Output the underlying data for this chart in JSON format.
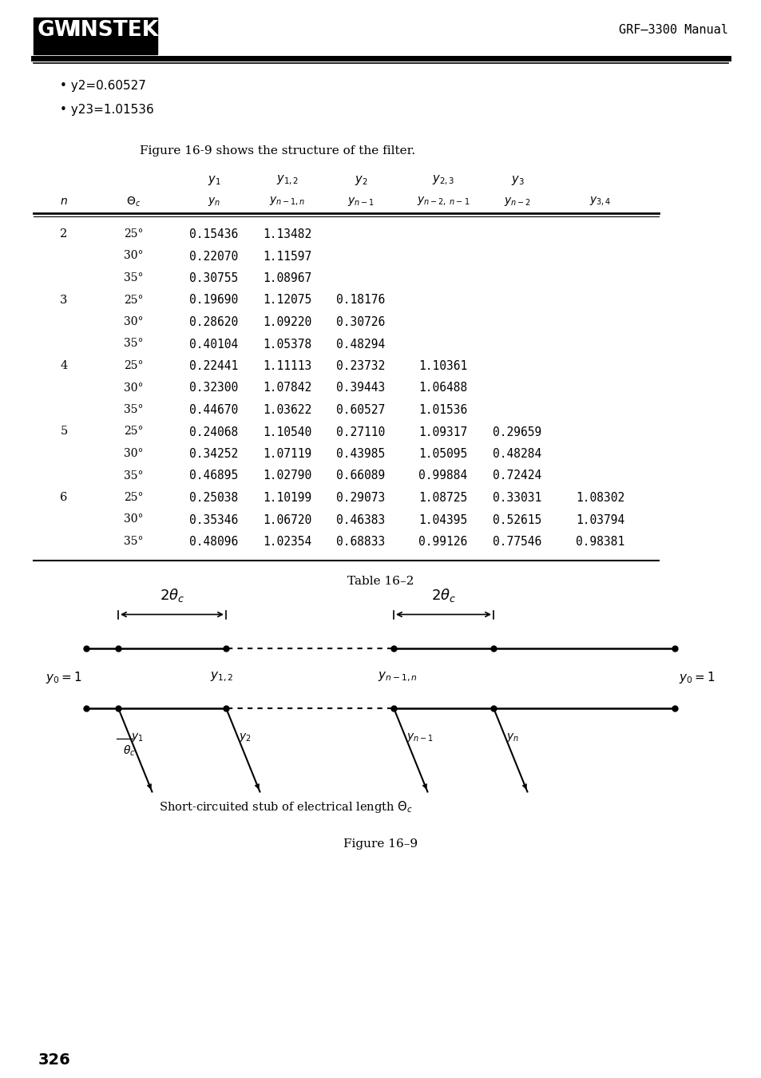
{
  "bg_color": "#ffffff",
  "header_right": "GRF–3300 Manual",
  "bullets": [
    "y2=0.60527",
    "y23=1.01536"
  ],
  "figure_caption_top": "Figure 16-9 shows the structure of the filter.",
  "table_caption": "Table 16–2",
  "figure_caption_bottom": "Figure 16–9",
  "page_number": "326",
  "table_data": [
    [
      "2",
      "25",
      "0.15436",
      "1.13482",
      "",
      "",
      "",
      ""
    ],
    [
      "",
      "30",
      "0.22070",
      "1.11597",
      "",
      "",
      "",
      ""
    ],
    [
      "",
      "35",
      "0.30755",
      "1.08967",
      "",
      "",
      "",
      ""
    ],
    [
      "3",
      "25",
      "0.19690",
      "1.12075",
      "0.18176",
      "",
      "",
      ""
    ],
    [
      "",
      "30",
      "0.28620",
      "1.09220",
      "0.30726",
      "",
      "",
      ""
    ],
    [
      "",
      "35",
      "0.40104",
      "1.05378",
      "0.48294",
      "",
      "",
      ""
    ],
    [
      "4",
      "25",
      "0.22441",
      "1.11113",
      "0.23732",
      "1.10361",
      "",
      ""
    ],
    [
      "",
      "30",
      "0.32300",
      "1.07842",
      "0.39443",
      "1.06488",
      "",
      ""
    ],
    [
      "",
      "35",
      "0.44670",
      "1.03622",
      "0.60527",
      "1.01536",
      "",
      ""
    ],
    [
      "5",
      "25",
      "0.24068",
      "1.10540",
      "0.27110",
      "1.09317",
      "0.29659",
      ""
    ],
    [
      "",
      "30",
      "0.34252",
      "1.07119",
      "0.43985",
      "1.05095",
      "0.48284",
      ""
    ],
    [
      "",
      "35",
      "0.46895",
      "1.02790",
      "0.66089",
      "0.99884",
      "0.72424",
      ""
    ],
    [
      "6",
      "25",
      "0.25038",
      "1.10199",
      "0.29073",
      "1.08725",
      "0.33031",
      "1.08302"
    ],
    [
      "",
      "30",
      "0.35346",
      "1.06720",
      "0.46383",
      "1.04395",
      "0.52615",
      "1.03794"
    ],
    [
      "",
      "35",
      "0.48096",
      "1.02354",
      "0.68833",
      "0.99126",
      "0.77546",
      "0.98381"
    ]
  ]
}
